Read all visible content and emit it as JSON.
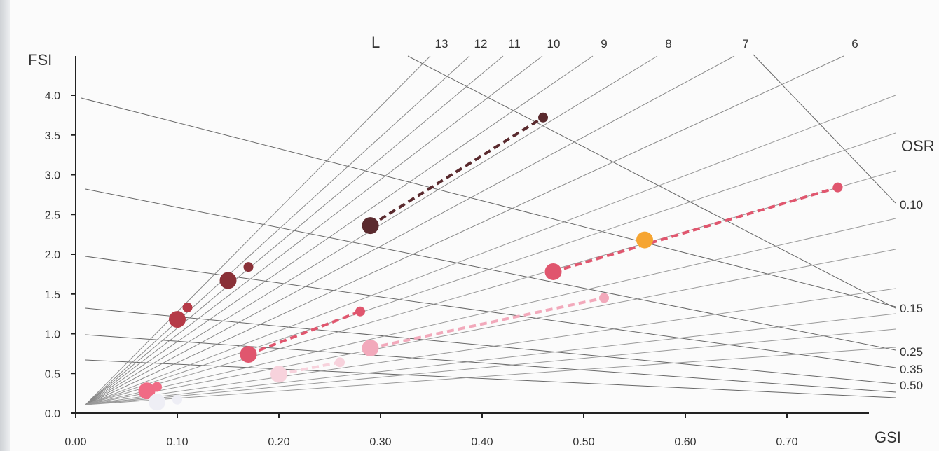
{
  "chart_data": {
    "type": "scatter",
    "title": "",
    "xlabel": "GSI",
    "ylabel": "FSI",
    "xlim": [
      0,
      0.79
    ],
    "ylim": [
      0,
      4.5
    ],
    "x_ticks": [
      "0.00",
      "0.10",
      "0.20",
      "0.30",
      "0.40",
      "0.50",
      "0.60",
      "0.70"
    ],
    "y_ticks": [
      "0.0",
      "0.5",
      "1.0",
      "1.5",
      "2.0",
      "2.5",
      "3.0",
      "3.5",
      "4.0"
    ],
    "grid": false,
    "layer_lines": {
      "title": "L",
      "labels": [
        "13",
        "12",
        "11",
        "10",
        "9",
        "8",
        "7",
        "6"
      ],
      "values": [
        13,
        12,
        11,
        10,
        9,
        8,
        7,
        6
      ]
    },
    "osr_lines": {
      "title": "OSR",
      "labels": [
        "0.10",
        "0.15",
        "0.25",
        "0.35",
        "0.50"
      ],
      "values": [
        0.1,
        0.15,
        0.25,
        0.35,
        0.5
      ]
    },
    "series": [
      {
        "color": "#5a2a2e",
        "points": [
          {
            "x": 0.29,
            "y": 2.36,
            "size": "large"
          },
          {
            "x": 0.46,
            "y": 3.72,
            "size": "small"
          }
        ],
        "dashed": true
      },
      {
        "color": "#e0566e",
        "points": [
          {
            "x": 0.47,
            "y": 1.78,
            "size": "large"
          },
          {
            "x": 0.75,
            "y": 2.84,
            "size": "small"
          }
        ],
        "dashed": true
      },
      {
        "color": "#e0566e",
        "points": [
          {
            "x": 0.17,
            "y": 0.74,
            "size": "large"
          },
          {
            "x": 0.28,
            "y": 1.28,
            "size": "small"
          }
        ],
        "dashed": true
      },
      {
        "color": "#f2a9bb",
        "points": [
          {
            "x": 0.29,
            "y": 0.82,
            "size": "large"
          },
          {
            "x": 0.52,
            "y": 1.45,
            "size": "small"
          }
        ],
        "dashed": true
      },
      {
        "color": "#f7d2dc",
        "points": [
          {
            "x": 0.2,
            "y": 0.49,
            "size": "large"
          },
          {
            "x": 0.26,
            "y": 0.64,
            "size": "small"
          }
        ],
        "dashed": true
      },
      {
        "color": "#8a3138",
        "points": [
          {
            "x": 0.15,
            "y": 1.67,
            "size": "large"
          },
          {
            "x": 0.17,
            "y": 1.84,
            "size": "small"
          }
        ],
        "dashed": false
      },
      {
        "color": "#b53a47",
        "points": [
          {
            "x": 0.1,
            "y": 1.18,
            "size": "large"
          },
          {
            "x": 0.11,
            "y": 1.33,
            "size": "small"
          }
        ],
        "dashed": false
      },
      {
        "color": "#f06b85",
        "points": [
          {
            "x": 0.07,
            "y": 0.28,
            "size": "large"
          },
          {
            "x": 0.08,
            "y": 0.33,
            "size": "small"
          }
        ],
        "dashed": false
      },
      {
        "color": "#eeeef5",
        "points": [
          {
            "x": 0.08,
            "y": 0.14,
            "size": "large"
          },
          {
            "x": 0.1,
            "y": 0.17,
            "size": "small"
          }
        ],
        "dashed": false
      },
      {
        "color": "#f6a531",
        "points": [
          {
            "x": 0.56,
            "y": 2.18,
            "size": "large"
          }
        ],
        "dashed": false
      }
    ]
  }
}
